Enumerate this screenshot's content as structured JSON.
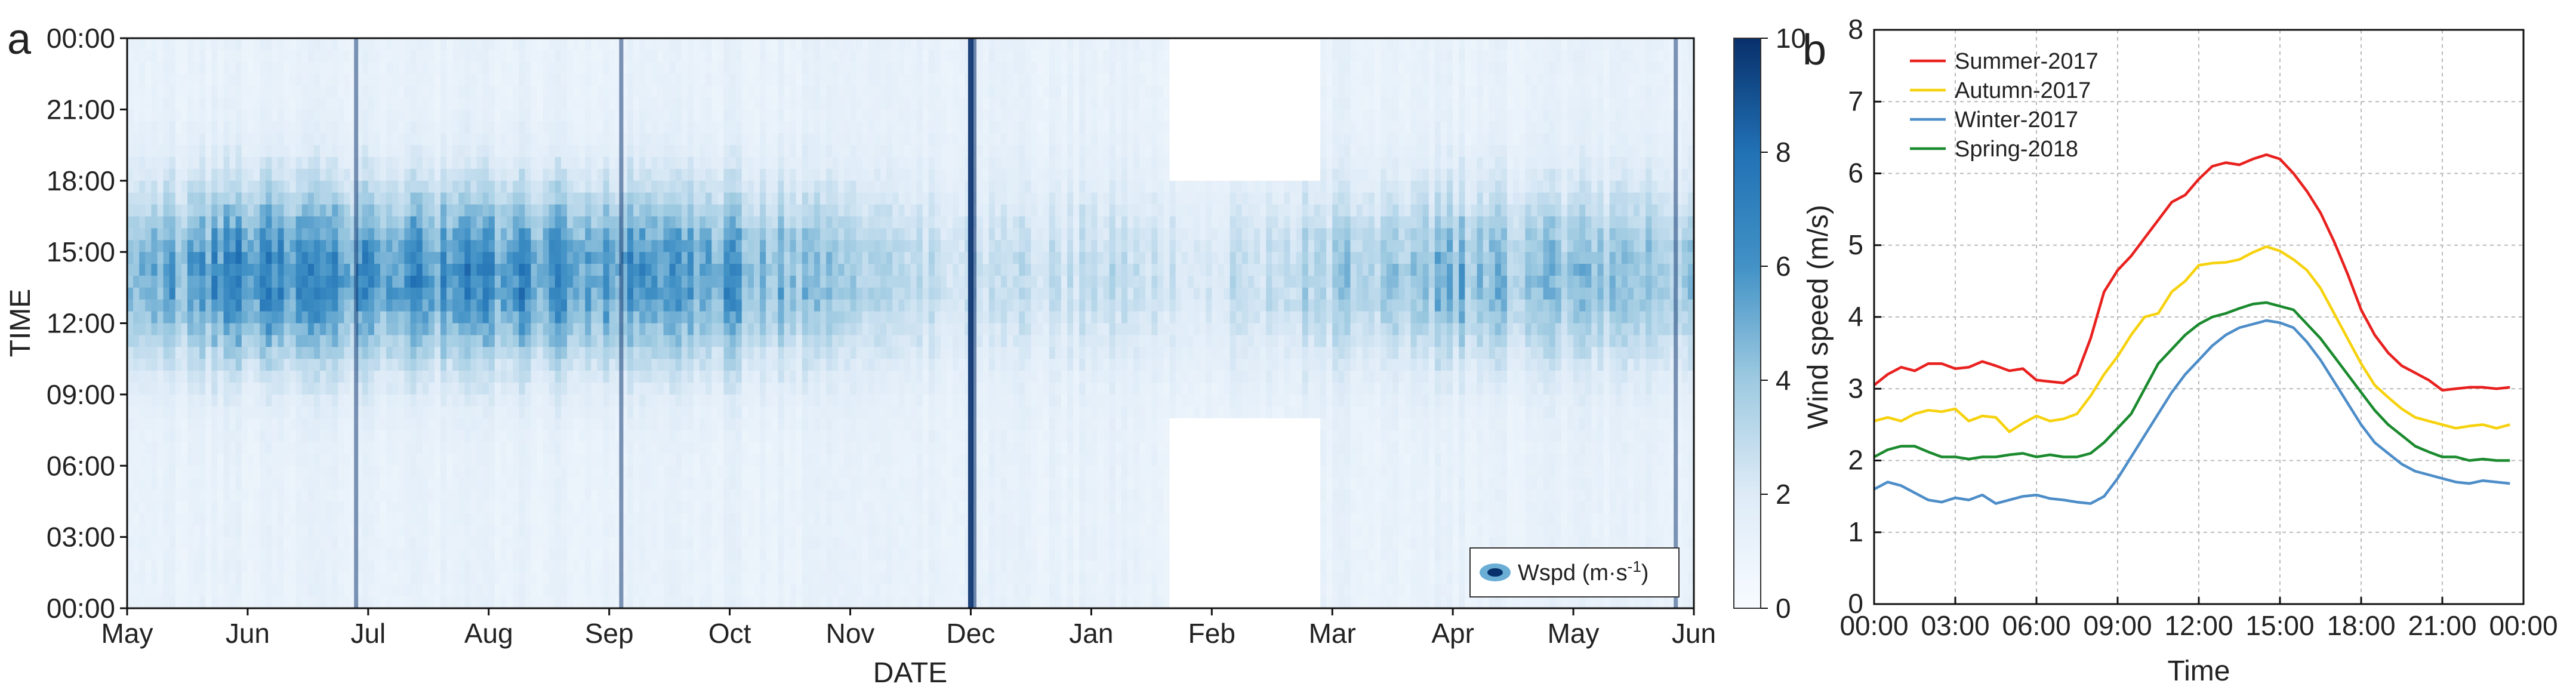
{
  "chart_data": [
    {
      "panel_label": "a",
      "type": "heatmap",
      "xlabel": "DATE",
      "ylabel": "TIME",
      "x_ticks": [
        "May",
        "Jun",
        "Jul",
        "Aug",
        "Sep",
        "Oct",
        "Nov",
        "Dec",
        "Jan",
        "Feb",
        "Mar",
        "Apr",
        "May",
        "Jun"
      ],
      "y_ticks": [
        "00:00",
        "03:00",
        "06:00",
        "09:00",
        "12:00",
        "15:00",
        "18:00",
        "21:00",
        "00:00"
      ],
      "colorbar": {
        "label": "Wspd (m·s-1)",
        "ticks": [
          "0",
          "2",
          "4",
          "6",
          "8",
          "10"
        ],
        "range": [
          0,
          10
        ],
        "color_low": "#f7fbff",
        "color_high": "#08306b"
      },
      "approx_daytime_mean_by_month": [
        {
          "month": "May",
          "value": 4.5
        },
        {
          "month": "Jun",
          "value": 6.5
        },
        {
          "month": "Jul",
          "value": 5.8
        },
        {
          "month": "Aug",
          "value": 6.2
        },
        {
          "month": "Sep",
          "value": 5.9
        },
        {
          "month": "Oct",
          "value": 5.5
        },
        {
          "month": "Nov",
          "value": 3.5
        },
        {
          "month": "Dec",
          "value": 2.5
        },
        {
          "month": "Jan",
          "value": 2.8
        },
        {
          "month": "Feb",
          "value": 2.5
        },
        {
          "month": "Mar",
          "value": 3.5
        },
        {
          "month": "Apr",
          "value": 4.5
        },
        {
          "month": "May",
          "value": 4.0
        }
      ],
      "missing_data_regions": [
        {
          "date_start": "Feb",
          "date_end": "Mar",
          "time_start": "00:00",
          "time_end": "08:00"
        },
        {
          "date_start": "Feb",
          "date_end": "Mar",
          "time_start": "18:00",
          "time_end": "24:00"
        }
      ]
    },
    {
      "panel_label": "b",
      "type": "line",
      "xlabel": "Time",
      "ylabel": "Wind speed (m/s)",
      "ylim": [
        0,
        8
      ],
      "x_ticks": [
        "00:00",
        "03:00",
        "06:00",
        "09:00",
        "12:00",
        "15:00",
        "18:00",
        "21:00",
        "00:00"
      ],
      "y_ticks": [
        "0",
        "1",
        "2",
        "3",
        "4",
        "5",
        "6",
        "7",
        "8"
      ],
      "grid": true,
      "legend_position": "top-left",
      "x_hours": [
        0,
        0.5,
        1,
        1.5,
        2,
        2.5,
        3,
        3.5,
        4,
        4.5,
        5,
        5.5,
        6,
        6.5,
        7,
        7.5,
        8,
        8.5,
        9,
        9.5,
        10,
        10.5,
        11,
        11.5,
        12,
        12.5,
        13,
        13.5,
        14,
        14.5,
        15,
        15.5,
        16,
        16.5,
        17,
        17.5,
        18,
        18.5,
        19,
        19.5,
        20,
        20.5,
        21,
        21.5,
        22,
        22.5,
        23,
        23.5
      ],
      "series": [
        {
          "name": "Summer-2017",
          "color": "#e8211f",
          "values": [
            3.05,
            3.2,
            3.3,
            3.25,
            3.35,
            3.35,
            3.28,
            3.3,
            3.38,
            3.32,
            3.25,
            3.28,
            3.12,
            3.1,
            3.08,
            3.2,
            3.7,
            4.35,
            4.65,
            4.85,
            5.1,
            5.35,
            5.6,
            5.7,
            5.92,
            6.1,
            6.15,
            6.12,
            6.2,
            6.26,
            6.2,
            6.0,
            5.75,
            5.45,
            5.05,
            4.6,
            4.1,
            3.75,
            3.5,
            3.32,
            3.22,
            3.12,
            2.98,
            3.0,
            3.02,
            3.02,
            3.0,
            3.02
          ]
        },
        {
          "name": "Autumn-2017",
          "color": "#f6d20e",
          "values": [
            2.55,
            2.6,
            2.55,
            2.65,
            2.7,
            2.68,
            2.72,
            2.55,
            2.62,
            2.6,
            2.4,
            2.52,
            2.62,
            2.55,
            2.58,
            2.65,
            2.9,
            3.2,
            3.45,
            3.75,
            4.0,
            4.05,
            4.35,
            4.5,
            4.72,
            4.75,
            4.76,
            4.8,
            4.9,
            4.98,
            4.92,
            4.8,
            4.65,
            4.4,
            4.05,
            3.7,
            3.35,
            3.05,
            2.88,
            2.72,
            2.6,
            2.55,
            2.5,
            2.45,
            2.48,
            2.5,
            2.45,
            2.5
          ]
        },
        {
          "name": "Winter-2017",
          "color": "#4d8dc8",
          "values": [
            1.6,
            1.7,
            1.65,
            1.55,
            1.45,
            1.42,
            1.48,
            1.45,
            1.52,
            1.4,
            1.45,
            1.5,
            1.52,
            1.47,
            1.45,
            1.42,
            1.4,
            1.5,
            1.75,
            2.05,
            2.35,
            2.65,
            2.95,
            3.2,
            3.4,
            3.6,
            3.75,
            3.85,
            3.9,
            3.95,
            3.92,
            3.85,
            3.65,
            3.4,
            3.1,
            2.8,
            2.5,
            2.25,
            2.1,
            1.95,
            1.85,
            1.8,
            1.75,
            1.7,
            1.68,
            1.72,
            1.7,
            1.68
          ]
        },
        {
          "name": "Spring-2018",
          "color": "#1b8a2e",
          "values": [
            2.05,
            2.15,
            2.2,
            2.2,
            2.12,
            2.05,
            2.05,
            2.02,
            2.05,
            2.05,
            2.08,
            2.1,
            2.05,
            2.08,
            2.05,
            2.05,
            2.1,
            2.25,
            2.45,
            2.65,
            3.0,
            3.35,
            3.55,
            3.75,
            3.9,
            4.0,
            4.05,
            4.12,
            4.18,
            4.2,
            4.15,
            4.1,
            3.9,
            3.7,
            3.45,
            3.2,
            2.95,
            2.7,
            2.5,
            2.35,
            2.2,
            2.12,
            2.05,
            2.05,
            2.0,
            2.02,
            2.0,
            2.0
          ]
        }
      ]
    }
  ]
}
